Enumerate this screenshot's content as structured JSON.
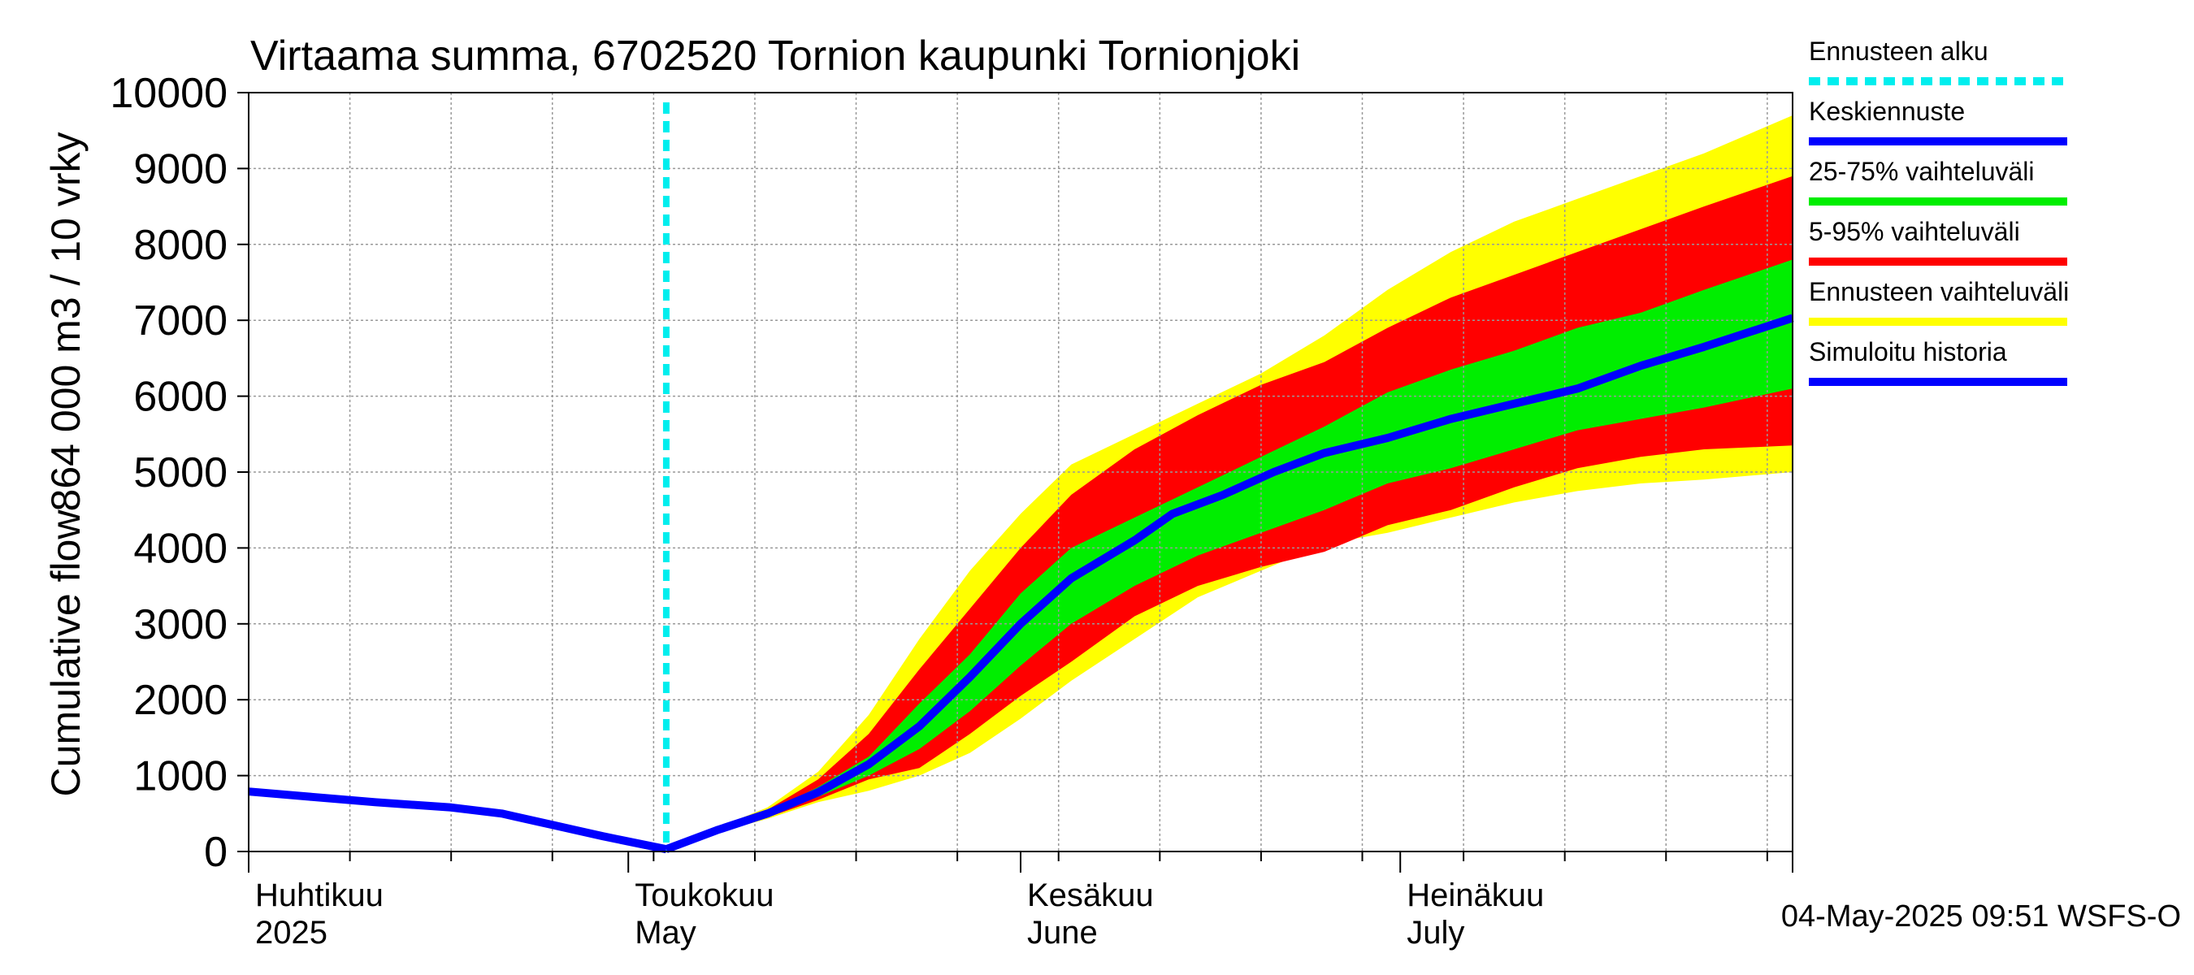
{
  "chart_data": {
    "type": "area",
    "title": "Virtaama summa, 6702520 Tornion kaupunki Tornionjoki",
    "ylabel_line1": "Cumulative flow",
    "ylabel_line2": "864 000 m3 / 10 vrky",
    "ylim": [
      0,
      10000
    ],
    "yticks": [
      0,
      1000,
      2000,
      3000,
      4000,
      5000,
      6000,
      7000,
      8000,
      9000,
      10000
    ],
    "x_range_days": [
      0,
      122
    ],
    "grid": true,
    "forecast_start_day": 33,
    "month_labels": [
      {
        "day": 0,
        "fi": "Huhtikuu",
        "en": "2025"
      },
      {
        "day": 30,
        "fi": "Toukokuu",
        "en": "May"
      },
      {
        "day": 61,
        "fi": "Kesäkuu",
        "en": "June"
      },
      {
        "day": 91,
        "fi": "Heinäkuu",
        "en": "July"
      }
    ],
    "month_tick_days": [
      0,
      30,
      61,
      91,
      122
    ],
    "history": {
      "x": [
        0,
        5,
        10,
        16,
        20,
        24,
        28,
        33
      ],
      "y": [
        790,
        720,
        650,
        580,
        500,
        350,
        200,
        30
      ]
    },
    "median": {
      "x": [
        33,
        37,
        41,
        45,
        49,
        53,
        57,
        61,
        65,
        70,
        73,
        77,
        81,
        85,
        90,
        95,
        100,
        105,
        110,
        115,
        122
      ],
      "y": [
        30,
        280,
        500,
        780,
        1150,
        1650,
        2300,
        3000,
        3600,
        4100,
        4450,
        4700,
        5000,
        5250,
        5450,
        5700,
        5900,
        6100,
        6400,
        6650,
        7030
      ]
    },
    "band_x": [
      33,
      37,
      41,
      45,
      49,
      53,
      57,
      61,
      65,
      70,
      75,
      80,
      85,
      90,
      95,
      100,
      105,
      110,
      115,
      122
    ],
    "band_25_75": {
      "lower": [
        30,
        270,
        480,
        720,
        1000,
        1350,
        1850,
        2450,
        3000,
        3500,
        3900,
        4200,
        4500,
        4850,
        5050,
        5300,
        5550,
        5700,
        5850,
        6100
      ],
      "upper": [
        30,
        290,
        520,
        850,
        1250,
        1950,
        2600,
        3400,
        4000,
        4400,
        4800,
        5200,
        5600,
        6050,
        6350,
        6600,
        6900,
        7100,
        7400,
        7800
      ]
    },
    "band_5_95": {
      "lower": [
        30,
        260,
        450,
        680,
        950,
        1100,
        1550,
        2050,
        2500,
        3100,
        3500,
        3750,
        3950,
        4300,
        4500,
        4800,
        5050,
        5200,
        5300,
        5350
      ],
      "upper": [
        30,
        300,
        550,
        950,
        1550,
        2400,
        3200,
        4000,
        4700,
        5300,
        5750,
        6150,
        6450,
        6900,
        7300,
        7600,
        7900,
        8200,
        8500,
        8900
      ]
    },
    "band_ensemble": {
      "lower": [
        30,
        250,
        430,
        650,
        800,
        1000,
        1300,
        1750,
        2250,
        2800,
        3350,
        3700,
        4050,
        4200,
        4400,
        4600,
        4750,
        4850,
        4900,
        5000
      ],
      "upper": [
        30,
        310,
        580,
        1050,
        1800,
        2800,
        3700,
        4450,
        5100,
        5500,
        5900,
        6300,
        6800,
        7400,
        7900,
        8300,
        8600,
        8900,
        9200,
        9700
      ]
    },
    "legend": {
      "placement": "right",
      "entries": [
        {
          "label": "Ennusteen alku",
          "color": "#00eeee",
          "style": "dashed"
        },
        {
          "label": "Keskiennuste",
          "color": "#0000ff",
          "style": "solid"
        },
        {
          "label": "25-75% vaihteluväli",
          "color": "#00ee00",
          "style": "solid"
        },
        {
          "label": "5-95% vaihteluväli",
          "color": "#ff0000",
          "style": "solid"
        },
        {
          "label": "Ennusteen vaihteluväli",
          "color": "#ffff00",
          "style": "solid"
        },
        {
          "label": "Simuloitu historia",
          "color": "#0000ff",
          "style": "solid"
        }
      ]
    },
    "colors": {
      "ensemble": "#ffff00",
      "band_5_95": "#ff0000",
      "band_25_75": "#00ee00",
      "median": "#0000ff",
      "history": "#0000ff",
      "forecast_start": "#00eeee",
      "grid": "#999999"
    },
    "footer": "04-May-2025 09:51 WSFS-O"
  }
}
